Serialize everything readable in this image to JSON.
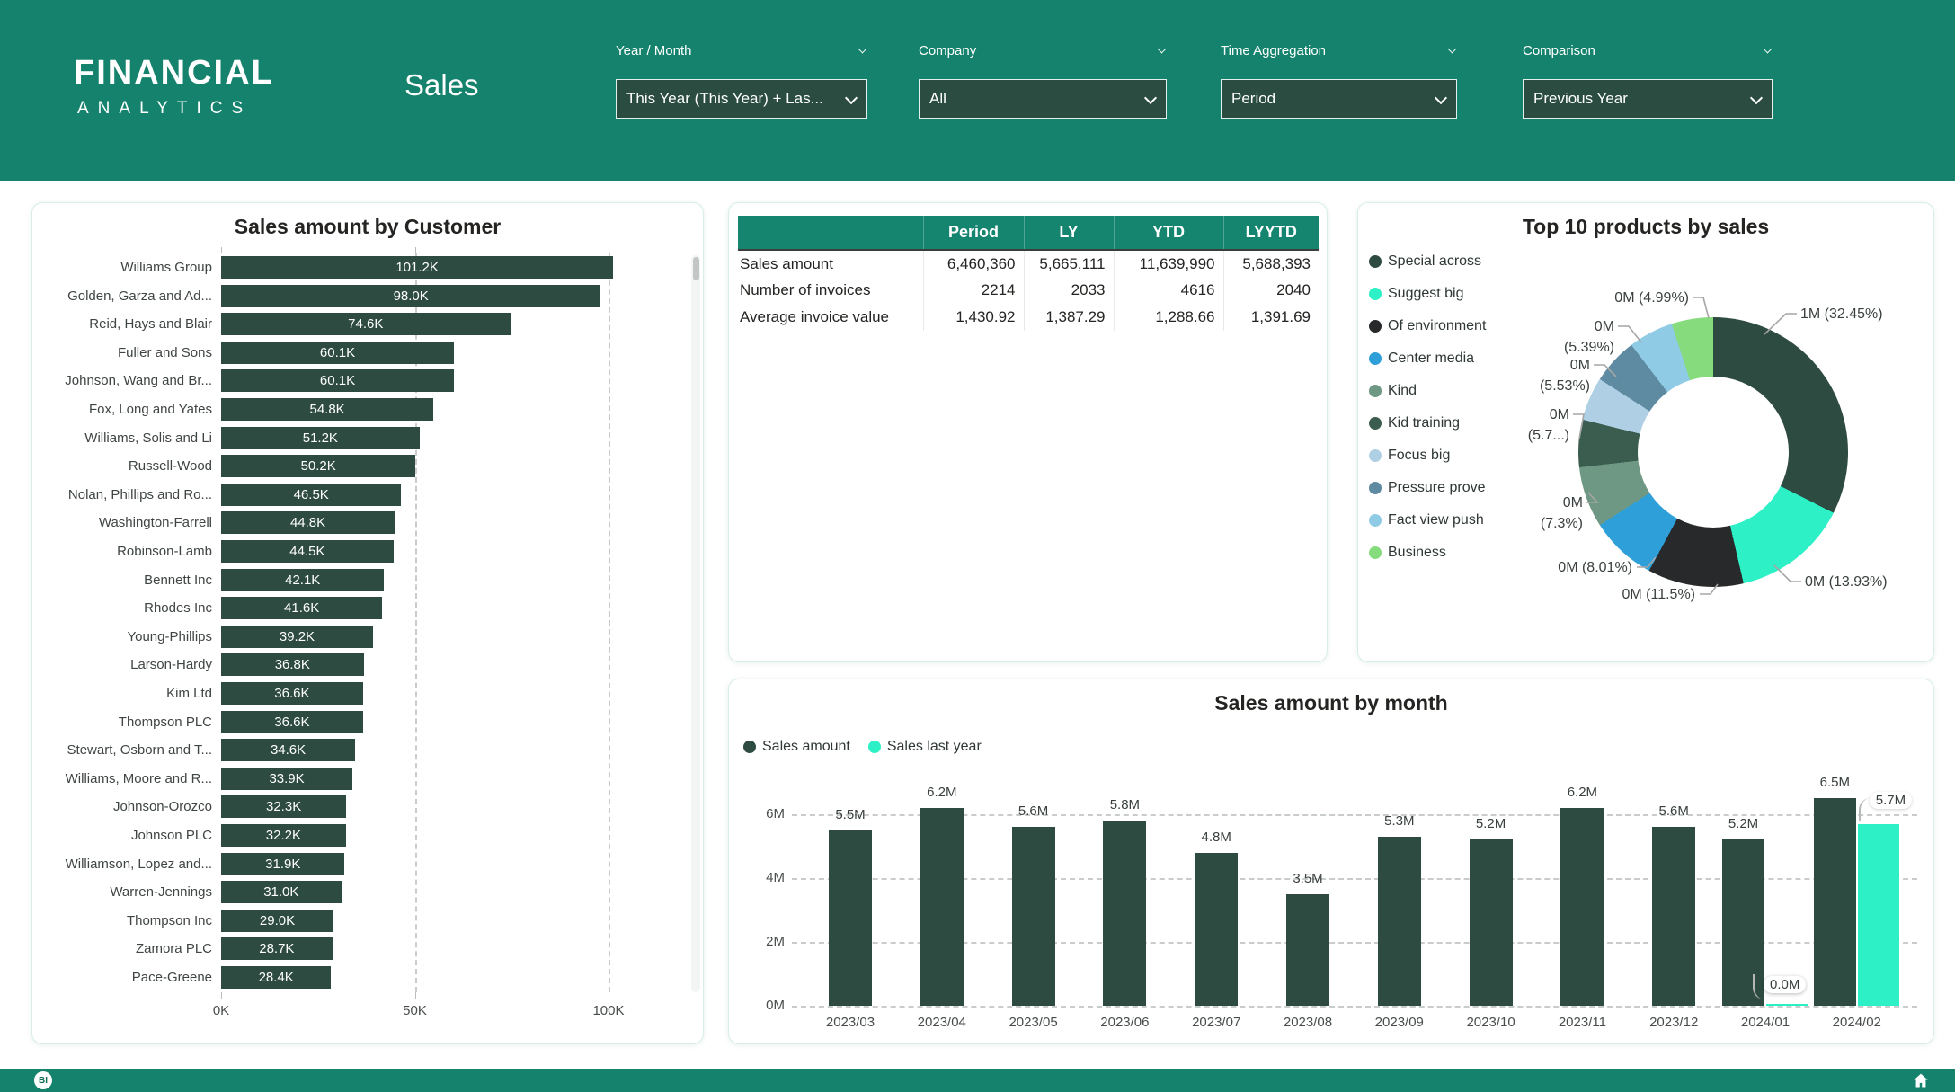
{
  "header": {
    "logo_line1": "FINANCIAL",
    "logo_line2": "ANALYTICS",
    "page_title": "Sales",
    "slicers": [
      {
        "label": "Year / Month",
        "value": "This Year (This Year) + Las..."
      },
      {
        "label": "Company",
        "value": "All"
      },
      {
        "label": "Time Aggregation",
        "value": "Period"
      },
      {
        "label": "Comparison",
        "value": "Previous Year"
      }
    ]
  },
  "chart_data": [
    {
      "type": "bar",
      "orientation": "horizontal",
      "title": "Sales amount by Customer",
      "categories": [
        "Williams Group",
        "Golden, Garza and Ad...",
        "Reid, Hays and Blair",
        "Fuller and Sons",
        "Johnson, Wang and Br...",
        "Fox, Long and Yates",
        "Williams, Solis and Li",
        "Russell-Wood",
        "Nolan, Phillips and Ro...",
        "Washington-Farrell",
        "Robinson-Lamb",
        "Bennett Inc",
        "Rhodes Inc",
        "Young-Phillips",
        "Larson-Hardy",
        "Kim Ltd",
        "Thompson PLC",
        "Stewart, Osborn and T...",
        "Williams, Moore and R...",
        "Johnson-Orozco",
        "Johnson PLC",
        "Williamson, Lopez and...",
        "Warren-Jennings",
        "Thompson Inc",
        "Zamora PLC",
        "Pace-Greene"
      ],
      "values": [
        101.2,
        98.0,
        74.6,
        60.1,
        60.1,
        54.8,
        51.2,
        50.2,
        46.5,
        44.8,
        44.5,
        42.1,
        41.6,
        39.2,
        36.8,
        36.6,
        36.6,
        34.6,
        33.9,
        32.3,
        32.2,
        31.9,
        31.0,
        29.0,
        28.7,
        28.4
      ],
      "value_labels": [
        "101.2K",
        "98.0K",
        "74.6K",
        "60.1K",
        "60.1K",
        "54.8K",
        "51.2K",
        "50.2K",
        "46.5K",
        "44.8K",
        "44.5K",
        "42.1K",
        "41.6K",
        "39.2K",
        "36.8K",
        "36.6K",
        "36.6K",
        "34.6K",
        "33.9K",
        "32.3K",
        "32.2K",
        "31.9K",
        "31.0K",
        "29.0K",
        "28.7K",
        "28.4K"
      ],
      "x_ticks": [
        "0K",
        "50K",
        "100K"
      ],
      "xlim": [
        0,
        105
      ],
      "bar_color": "#2E4B41",
      "grid": true
    },
    {
      "type": "table",
      "headers": [
        "",
        "Period",
        "LY",
        "YTD",
        "LYYTD"
      ],
      "rows": [
        [
          "Sales amount",
          "6,460,360",
          "5,665,111",
          "11,639,990",
          "5,688,393"
        ],
        [
          "Number of invoices",
          "2214",
          "2033",
          "4616",
          "2040"
        ],
        [
          "Average invoice value",
          "1,430.92",
          "1,387.29",
          "1,288.66",
          "1,391.69"
        ]
      ]
    },
    {
      "type": "pie",
      "title": "Top 10 products by sales",
      "legend_position": "left",
      "slices": [
        {
          "name": "Special across",
          "pct": 32.45,
          "label": "1M (32.45%)",
          "color": "#2E4B41"
        },
        {
          "name": "Suggest big",
          "pct": 13.93,
          "label": "0M (13.93%)",
          "color": "#2DF0C6"
        },
        {
          "name": "Of environment",
          "pct": 11.5,
          "label": "0M (11.5%)",
          "color": "#27292B"
        },
        {
          "name": "Center media",
          "pct": 8.01,
          "label": "0M (8.01%)",
          "color": "#2E9FD8"
        },
        {
          "name": "Kind",
          "pct": 7.3,
          "label": "0M (7.3%)",
          "color": "#6E9883"
        },
        {
          "name": "Kid training",
          "pct": 5.7,
          "label": "0M (5.7...)",
          "color": "#3B5D4F"
        },
        {
          "name": "Focus big",
          "pct": 5.2,
          "label": "",
          "color": "#AFCFE4"
        },
        {
          "name": "Pressure prove",
          "pct": 5.53,
          "label": "0M (5.53%)",
          "color": "#5E8BA2"
        },
        {
          "name": "Fact view push",
          "pct": 5.39,
          "label": "0M (5.39%)",
          "color": "#8FCBE5"
        },
        {
          "name": "Business",
          "pct": 4.99,
          "label": "0M (4.99%)",
          "color": "#86DC7D"
        }
      ]
    },
    {
      "type": "bar",
      "title": "Sales amount by month",
      "categories": [
        "2023/03",
        "2023/04",
        "2023/05",
        "2023/06",
        "2023/07",
        "2023/08",
        "2023/09",
        "2023/10",
        "2023/11",
        "2023/12",
        "2024/01",
        "2024/02"
      ],
      "series": [
        {
          "name": "Sales amount",
          "color": "#2E4B41",
          "values": [
            5.5,
            6.2,
            5.6,
            5.8,
            4.8,
            3.5,
            5.3,
            5.2,
            6.2,
            5.6,
            5.2,
            6.5
          ],
          "labels": [
            "5.5M",
            "6.2M",
            "5.6M",
            "5.8M",
            "4.8M",
            "3.5M",
            "5.3M",
            "5.2M",
            "6.2M",
            "5.6M",
            "5.2M",
            "6.5M"
          ]
        },
        {
          "name": "Sales last year",
          "color": "#2DF0C6",
          "values": [
            null,
            null,
            null,
            null,
            null,
            null,
            null,
            null,
            null,
            null,
            0.0,
            5.7
          ],
          "labels": [
            null,
            null,
            null,
            null,
            null,
            null,
            null,
            null,
            null,
            null,
            "0.0M",
            "5.7M"
          ]
        }
      ],
      "y_ticks": [
        "0M",
        "2M",
        "4M",
        "6M"
      ],
      "ylim": [
        0,
        6.8
      ],
      "grid": true,
      "legend_position": "top-left"
    }
  ],
  "footer": {
    "badge_label": "BI"
  }
}
